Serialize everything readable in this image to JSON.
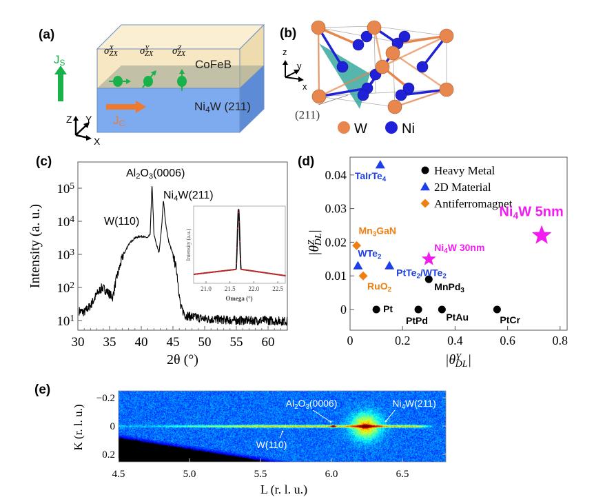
{
  "panel_labels": {
    "a": "(a)",
    "b": "(b)",
    "c": "(c)",
    "d": "(d)",
    "e": "(e)"
  },
  "panel_a": {
    "layer_top": "CoFeB",
    "layer_bottom": [
      [
        "Ni",
        ""
      ],
      [
        "4",
        "sub"
      ],
      [
        "W (211)",
        ""
      ]
    ],
    "spin_labels": [
      [
        [
          "σ",
          ""
        ],
        [
          "X",
          "sup"
        ],
        [
          "ZX",
          "sub"
        ]
      ],
      [
        [
          "σ",
          ""
        ],
        [
          "Y",
          "sup"
        ],
        [
          "ZX",
          "sub"
        ]
      ],
      [
        [
          "σ",
          ""
        ],
        [
          "Z",
          "sup"
        ],
        [
          "ZX",
          "sub"
        ]
      ]
    ],
    "spin_current": [
      [
        "J",
        ""
      ],
      [
        "S",
        "sub"
      ]
    ],
    "charge_current": [
      [
        "J",
        ""
      ],
      [
        "C",
        "sub"
      ]
    ],
    "axes": {
      "z": "Z",
      "y": "Y",
      "x": "X"
    },
    "colors": {
      "cofeb": "#f7e8c3",
      "ni4w": "#7eaaf0",
      "spin": "#19b14a",
      "charge": "#ee7a2f"
    }
  },
  "panel_b": {
    "plane_label": "(211)",
    "legend": [
      "W",
      "Ni"
    ],
    "axes": {
      "z": "z",
      "y": "y",
      "x": "x"
    },
    "colors": {
      "W": "#e8874d",
      "Ni": "#2020d8",
      "plane": "#1d9d93"
    }
  },
  "chart_data": [
    {
      "id": "c",
      "type": "line",
      "title": "",
      "xlabel": "2θ (°)",
      "ylabel": "Intensity (a. u.)",
      "yscale": "log",
      "xlim": [
        30,
        63
      ],
      "ylim_log10": [
        0.7,
        5.8
      ],
      "xticks": [
        30,
        35,
        40,
        45,
        50,
        55,
        60
      ],
      "yticks": [
        [
          [
            "10",
            ""
          ],
          [
            "1",
            "sup"
          ]
        ],
        [
          [
            "10",
            ""
          ],
          [
            "2",
            "sup"
          ]
        ],
        [
          [
            "10",
            ""
          ],
          [
            "3",
            "sup"
          ]
        ],
        [
          [
            "10",
            ""
          ],
          [
            "4",
            "sup"
          ]
        ],
        [
          [
            "10",
            ""
          ],
          [
            "5",
            "sup"
          ]
        ]
      ],
      "ytick_values_log10": [
        1,
        2,
        3,
        4,
        5
      ],
      "x": [
        30,
        31,
        32,
        33,
        33.8,
        34.5,
        35.5,
        36,
        37,
        38,
        39,
        40,
        41,
        41.4,
        41.7,
        42,
        42.4,
        42.8,
        43.2,
        43.5,
        43.8,
        44.3,
        45,
        45.6,
        46.2,
        47,
        50,
        55,
        60,
        63
      ],
      "log10_intensity": [
        1.3,
        1.25,
        1.45,
        1.8,
        2.0,
        1.9,
        1.7,
        2.2,
        2.9,
        3.3,
        3.5,
        3.55,
        3.5,
        3.6,
        5.15,
        3.6,
        3.3,
        3.05,
        3.8,
        4.65,
        4.0,
        3.4,
        3.0,
        2.5,
        1.4,
        1.15,
        1.05,
        1.0,
        1.0,
        0.98
      ],
      "annotations": [
        {
          "text": [
            [
              "Al",
              ""
            ],
            [
              "2",
              "sub"
            ],
            [
              "O",
              ""
            ],
            [
              "3",
              "sub"
            ],
            [
              "(0006)",
              ""
            ]
          ],
          "x": 41.7
        },
        {
          "text": [
            [
              "Ni",
              ""
            ],
            [
              "4",
              "sub"
            ],
            [
              "W(211)",
              ""
            ]
          ],
          "x": 43.5
        },
        {
          "text": [
            [
              "W(110)",
              ""
            ]
          ],
          "x": 40
        }
      ],
      "inset": {
        "type": "line",
        "xlabel": "Omega (°)",
        "ylabel": "Intensity (a.u.)",
        "xlim": [
          20.74,
          22.66
        ],
        "xticks": [
          "21.0",
          "21.5",
          "22.0",
          "22.5"
        ],
        "xtick_values": [
          21.0,
          21.5,
          22.0,
          22.5
        ],
        "peak_center": 21.68,
        "x": [
          20.74,
          21.6,
          21.64,
          21.68,
          21.72,
          21.76,
          22.66
        ],
        "y": [
          0.05,
          0.12,
          0.5,
          1.0,
          0.5,
          0.12,
          0.03
        ],
        "colors": {
          "line": "#111111",
          "points": "#c0262a"
        }
      }
    },
    {
      "id": "d",
      "type": "scatter",
      "xlabel": [
        [
          "|θ",
          ""
        ],
        [
          "Y",
          "sup"
        ],
        [
          "DL",
          "sub"
        ],
        [
          "|",
          ""
        ]
      ],
      "ylabel": [
        [
          "|θ",
          ""
        ],
        [
          "Z",
          "sup"
        ],
        [
          "DL",
          "sub"
        ],
        [
          "|",
          ""
        ]
      ],
      "xlim": [
        0,
        0.825
      ],
      "ylim": [
        -0.0061,
        0.0453
      ],
      "xticks": [
        "0",
        "0.2",
        "0.4",
        "0.6",
        "0.8"
      ],
      "xtick_values": [
        0,
        0.2,
        0.4,
        0.6,
        0.8
      ],
      "yticks": [
        "0",
        "0.01",
        "0.02",
        "0.03",
        "0.04"
      ],
      "ytick_values": [
        0,
        0.01,
        0.02,
        0.03,
        0.04
      ],
      "legend": [
        {
          "label": "Heavy Metal",
          "marker": "circle",
          "color": "#000000"
        },
        {
          "label": "2D Material",
          "marker": "triangle",
          "color": "#1f3fe6"
        },
        {
          "label": "Antiferromagnet",
          "marker": "diamond",
          "color": "#f07f12"
        }
      ],
      "legend_position": "top-center",
      "series": [
        {
          "name": "Heavy Metal",
          "marker": "circle",
          "color": "#000000",
          "points": [
            {
              "x": 0.1,
              "y": 0,
              "label": [
                [
                  "Pt",
                  ""
                ]
              ]
            },
            {
              "x": 0.26,
              "y": 0,
              "label": [
                [
                  "PtPd",
                  ""
                ]
              ]
            },
            {
              "x": 0.35,
              "y": 0,
              "label": [
                [
                  "PtAu",
                  ""
                ]
              ]
            },
            {
              "x": 0.56,
              "y": 0,
              "label": [
                [
                  "PtCr",
                  ""
                ]
              ]
            },
            {
              "x": 0.3,
              "y": 0.009,
              "label": [
                [
                  "MnPd",
                  ""
                ],
                [
                  "3",
                  "sub"
                ]
              ]
            }
          ]
        },
        {
          "name": "2D Material",
          "marker": "triangle",
          "color": "#1f3fe6",
          "points": [
            {
              "x": 0.115,
              "y": 0.043,
              "label": [
                [
                  "TaIrTe",
                  ""
                ],
                [
                  "4",
                  "sub"
                ]
              ]
            },
            {
              "x": 0.03,
              "y": 0.013,
              "label": [
                [
                  "WTe",
                  ""
                ],
                [
                  "2",
                  "sub"
                ]
              ]
            },
            {
              "x": 0.15,
              "y": 0.013,
              "label": [
                [
                  "PtTe",
                  ""
                ],
                [
                  "2",
                  "sub"
                ],
                [
                  "/WTe",
                  ""
                ],
                [
                  "2",
                  "sub"
                ]
              ]
            }
          ]
        },
        {
          "name": "Antiferromagnet",
          "marker": "diamond",
          "color": "#f07f12",
          "points": [
            {
              "x": 0.025,
              "y": 0.019,
              "label": [
                [
                  "Mn",
                  ""
                ],
                [
                  "3",
                  "sub"
                ],
                [
                  "GaN",
                  ""
                ]
              ]
            },
            {
              "x": 0.05,
              "y": 0.01,
              "label": [
                [
                  "RuO",
                  ""
                ],
                [
                  "2",
                  "sub"
                ]
              ]
            }
          ]
        },
        {
          "name": "Ni4W",
          "marker": "star",
          "color": "#f21cf0",
          "points": [
            {
              "x": 0.3,
              "y": 0.015,
              "label": [
                [
                  "Ni",
                  ""
                ],
                [
                  "4",
                  "sub"
                ],
                [
                  "W 30nm",
                  ""
                ]
              ]
            },
            {
              "x": 0.73,
              "y": 0.022,
              "label": [
                [
                  "Ni",
                  ""
                ],
                [
                  "4",
                  "sub"
                ],
                [
                  "W 5nm",
                  ""
                ]
              ]
            }
          ]
        }
      ]
    },
    {
      "id": "e",
      "type": "heatmap",
      "xlabel": "L (r. l. u.)",
      "ylabel": "K (r. l. u.)",
      "xlim": [
        4.5,
        6.8
      ],
      "ylim": [
        0.26,
        -0.26
      ],
      "xticks": [
        "4.5",
        "5.0",
        "5.5",
        "6.0",
        "6.5"
      ],
      "xtick_values": [
        4.5,
        5.0,
        5.5,
        6.0,
        6.5
      ],
      "yticks": [
        "−0.2",
        "0",
        "0.2"
      ],
      "ytick_values": [
        -0.2,
        0,
        0.2
      ],
      "colormap": "jet",
      "peaks": [
        {
          "label": [
            [
              "Al",
              ""
            ],
            [
              "2",
              "sub"
            ],
            [
              "O",
              ""
            ],
            [
              "3",
              "sub"
            ],
            [
              "(0006)",
              ""
            ]
          ],
          "L": 6.01,
          "K": 0
        },
        {
          "label": [
            [
              "Ni",
              ""
            ],
            [
              "4",
              "sub"
            ],
            [
              "W(211)",
              ""
            ]
          ],
          "L": 6.24,
          "K": 0
        },
        {
          "label": [
            [
              "W(110)",
              ""
            ]
          ],
          "L": 5.65,
          "K": 0
        }
      ]
    }
  ]
}
